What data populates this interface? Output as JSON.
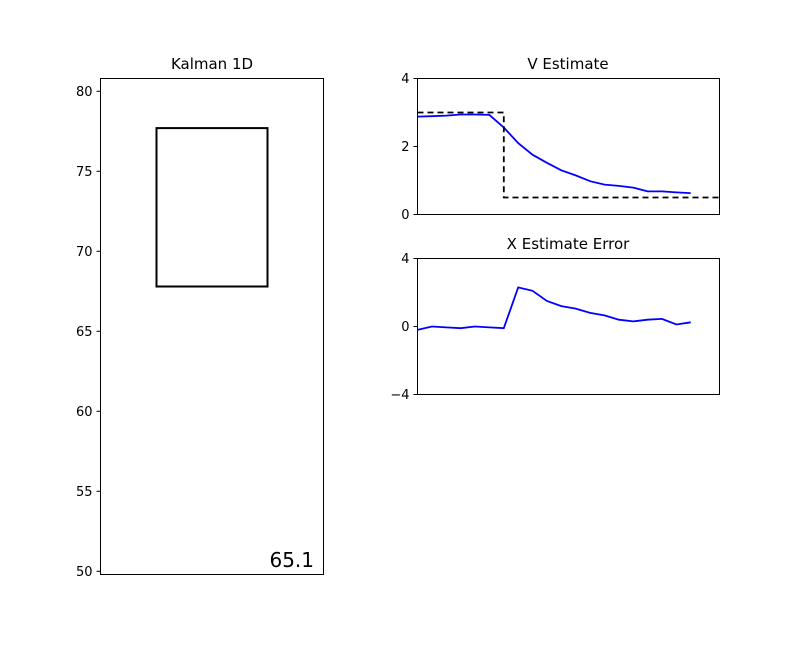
{
  "chart_data": [
    {
      "type": "line",
      "title": "Kalman 1D",
      "xlabel": "",
      "ylabel": "",
      "ylim": [
        49.8,
        80.8
      ],
      "y_ticks": [
        {
          "value": 80,
          "label": "80"
        },
        {
          "value": 75,
          "label": "75"
        },
        {
          "value": 70,
          "label": "70"
        },
        {
          "value": 65,
          "label": "65"
        },
        {
          "value": 60,
          "label": "60"
        },
        {
          "value": 55,
          "label": "55"
        },
        {
          "value": 50,
          "label": "50"
        }
      ],
      "box": {
        "y_bottom": 67.8,
        "y_top": 77.7,
        "stroke": "#000000"
      },
      "readout": "65.1",
      "grid": false
    },
    {
      "type": "line",
      "title": "V Estimate",
      "xlabel": "",
      "ylabel": "",
      "xlim": [
        0,
        21
      ],
      "ylim": [
        0,
        4
      ],
      "y_ticks": [
        {
          "value": 4,
          "label": "4"
        },
        {
          "value": 2,
          "label": "2"
        },
        {
          "value": 0,
          "label": "0"
        }
      ],
      "grid": false,
      "series": [
        {
          "style": "line",
          "color": "#0000ff",
          "x": [
            0,
            1,
            2,
            3,
            4,
            5,
            6,
            7,
            8,
            9,
            10,
            11,
            12,
            13,
            14,
            15,
            16,
            17,
            18,
            19
          ],
          "y": [
            2.88,
            2.89,
            2.91,
            2.94,
            2.94,
            2.93,
            2.56,
            2.1,
            1.76,
            1.52,
            1.3,
            1.15,
            0.98,
            0.88,
            0.84,
            0.79,
            0.68,
            0.68,
            0.65,
            0.63
          ]
        },
        {
          "style": "dashed",
          "color": "#000000",
          "x": [
            0,
            6,
            6,
            21
          ],
          "y": [
            3.0,
            3.0,
            0.5,
            0.5
          ]
        }
      ]
    },
    {
      "type": "line",
      "title": "X Estimate Error",
      "xlabel": "",
      "ylabel": "",
      "xlim": [
        0,
        21
      ],
      "ylim": [
        -4,
        4
      ],
      "y_ticks": [
        {
          "value": 4,
          "label": "4"
        },
        {
          "value": 0,
          "label": "0"
        },
        {
          "value": -4,
          "label": "−4"
        }
      ],
      "grid": false,
      "series": [
        {
          "style": "line",
          "color": "#0000ff",
          "x": [
            0,
            1,
            2,
            3,
            4,
            5,
            6,
            7,
            8,
            9,
            10,
            11,
            12,
            13,
            14,
            15,
            16,
            17,
            18,
            19
          ],
          "y": [
            -0.2,
            0.0,
            -0.05,
            -0.1,
            0.0,
            -0.05,
            -0.1,
            2.3,
            2.1,
            1.5,
            1.2,
            1.05,
            0.8,
            0.65,
            0.4,
            0.3,
            0.4,
            0.45,
            0.12,
            0.25
          ]
        }
      ]
    }
  ]
}
